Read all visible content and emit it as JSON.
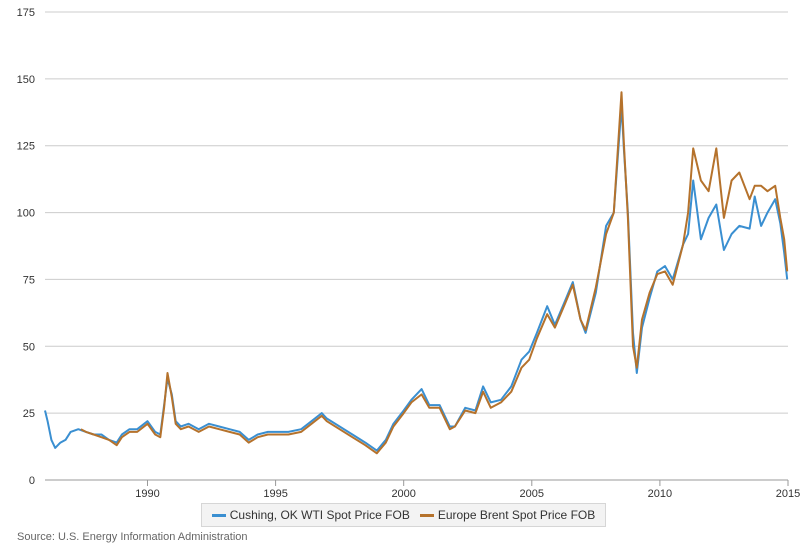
{
  "chart_data": {
    "type": "line",
    "title": "",
    "xlabel": "",
    "ylabel": "",
    "xlim": [
      1986.0,
      2015.0
    ],
    "ylim": [
      0,
      175
    ],
    "yticks": [
      0,
      25,
      50,
      75,
      100,
      125,
      150,
      175
    ],
    "xticks": [
      "1990",
      "1995",
      "2000",
      "2005",
      "2010",
      "2015"
    ],
    "grid": "horizontal",
    "legend": "bottom-center",
    "source": "Source: U.S. Energy Information Administration",
    "series": [
      {
        "name": "Cushing, OK WTI Spot Price FOB",
        "color": "#3a8fd1",
        "x": [
          1986.0,
          1986.1,
          1986.25,
          1986.4,
          1986.6,
          1986.8,
          1987.0,
          1987.3,
          1987.6,
          1987.9,
          1988.2,
          1988.5,
          1988.8,
          1989.0,
          1989.3,
          1989.6,
          1990.0,
          1990.3,
          1990.5,
          1990.65,
          1990.78,
          1990.95,
          1991.1,
          1991.3,
          1991.6,
          1992.0,
          1992.4,
          1992.8,
          1993.2,
          1993.6,
          1993.95,
          1994.3,
          1994.7,
          1995.0,
          1995.5,
          1996.0,
          1996.4,
          1996.8,
          1997.0,
          1997.5,
          1998.0,
          1998.5,
          1998.95,
          1999.3,
          1999.6,
          2000.0,
          2000.3,
          2000.7,
          2001.0,
          2001.4,
          2001.8,
          2002.0,
          2002.4,
          2002.8,
          2003.1,
          2003.4,
          2003.8,
          2004.2,
          2004.6,
          2004.9,
          2005.2,
          2005.6,
          2005.9,
          2006.3,
          2006.6,
          2006.9,
          2007.1,
          2007.5,
          2007.9,
          2008.2,
          2008.5,
          2008.6,
          2008.75,
          2008.95,
          2009.1,
          2009.3,
          2009.6,
          2009.9,
          2010.2,
          2010.5,
          2010.9,
          2011.1,
          2011.3,
          2011.6,
          2011.9,
          2012.2,
          2012.5,
          2012.8,
          2013.1,
          2013.5,
          2013.7,
          2013.95,
          2014.2,
          2014.5,
          2014.7,
          2014.85,
          2014.97
        ],
        "values": [
          26,
          22,
          15,
          12,
          14,
          15,
          18,
          19,
          18,
          17,
          17,
          15,
          14,
          17,
          19,
          19,
          22,
          18,
          17,
          28,
          38,
          32,
          22,
          20,
          21,
          19,
          21,
          20,
          19,
          18,
          15,
          17,
          18,
          18,
          18,
          19,
          22,
          25,
          23,
          20,
          17,
          14,
          11,
          15,
          21,
          26,
          30,
          34,
          28,
          28,
          20,
          20,
          27,
          26,
          35,
          29,
          30,
          35,
          45,
          48,
          55,
          65,
          58,
          67,
          74,
          60,
          55,
          70,
          95,
          100,
          140,
          123,
          100,
          55,
          40,
          57,
          68,
          78,
          80,
          75,
          88,
          92,
          112,
          90,
          98,
          103,
          86,
          92,
          95,
          94,
          106,
          95,
          100,
          105,
          96,
          85,
          75
        ]
      },
      {
        "name": "Europe Brent Spot Price FOB",
        "color": "#b5722c",
        "x": [
          1987.4,
          1987.6,
          1987.9,
          1988.2,
          1988.5,
          1988.8,
          1989.0,
          1989.3,
          1989.6,
          1990.0,
          1990.3,
          1990.5,
          1990.65,
          1990.78,
          1990.95,
          1991.1,
          1991.3,
          1991.6,
          1992.0,
          1992.4,
          1992.8,
          1993.2,
          1993.6,
          1993.95,
          1994.3,
          1994.7,
          1995.0,
          1995.5,
          1996.0,
          1996.4,
          1996.8,
          1997.0,
          1997.5,
          1998.0,
          1998.5,
          1998.95,
          1999.3,
          1999.6,
          2000.0,
          2000.3,
          2000.7,
          2001.0,
          2001.4,
          2001.8,
          2002.0,
          2002.4,
          2002.8,
          2003.1,
          2003.4,
          2003.8,
          2004.2,
          2004.6,
          2004.9,
          2005.2,
          2005.6,
          2005.9,
          2006.3,
          2006.6,
          2006.9,
          2007.1,
          2007.5,
          2007.9,
          2008.2,
          2008.5,
          2008.6,
          2008.75,
          2008.95,
          2009.1,
          2009.3,
          2009.6,
          2009.9,
          2010.2,
          2010.5,
          2010.9,
          2011.1,
          2011.3,
          2011.6,
          2011.9,
          2012.2,
          2012.5,
          2012.8,
          2013.1,
          2013.5,
          2013.7,
          2013.95,
          2014.2,
          2014.5,
          2014.7,
          2014.85,
          2014.97
        ],
        "values": [
          19,
          18,
          17,
          16,
          15,
          13,
          16,
          18,
          18,
          21,
          17,
          16,
          27,
          40,
          31,
          21,
          19,
          20,
          18,
          20,
          19,
          18,
          17,
          14,
          16,
          17,
          17,
          17,
          18,
          21,
          24,
          22,
          19,
          16,
          13,
          10,
          14,
          20,
          25,
          29,
          32,
          27,
          27,
          19,
          20,
          26,
          25,
          33,
          27,
          29,
          33,
          42,
          45,
          53,
          62,
          57,
          66,
          73,
          60,
          56,
          72,
          92,
          100,
          145,
          125,
          98,
          50,
          42,
          60,
          70,
          77,
          78,
          73,
          88,
          100,
          124,
          112,
          108,
          124,
          98,
          112,
          115,
          105,
          110,
          110,
          108,
          110,
          98,
          90,
          78
        ]
      }
    ]
  }
}
